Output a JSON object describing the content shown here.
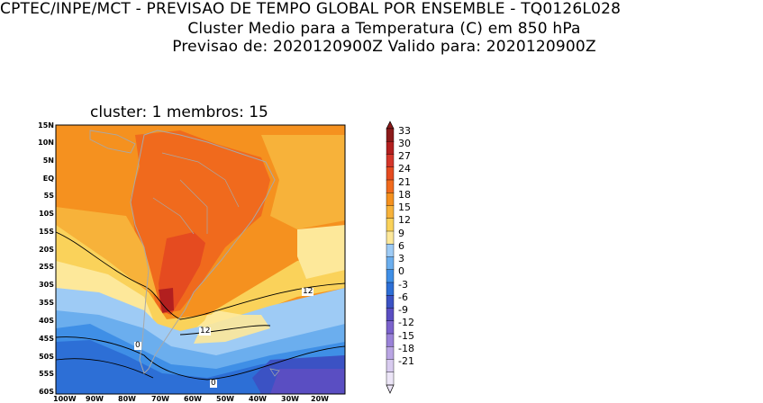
{
  "header": {
    "line1": "CPTEC/INPE/MCT - PREVISAO DE TEMPO GLOBAL POR ENSEMBLE - TQ0126L028",
    "line2": "Cluster Medio para a Temperatura (C) em 850 hPa",
    "line3": "Previsao de: 2020120900Z   Valido para: 2020120900Z"
  },
  "panel": {
    "title": "cluster: 1  membros: 15"
  },
  "axes": {
    "lat_labels": [
      "15N",
      "10N",
      "5N",
      "EQ",
      "5S",
      "10S",
      "15S",
      "20S",
      "25S",
      "30S",
      "35S",
      "40S",
      "45S",
      "50S",
      "55S",
      "60S"
    ],
    "lon_labels": [
      "100W",
      "90W",
      "80W",
      "70W",
      "60W",
      "50W",
      "40W",
      "30W",
      "20W"
    ]
  },
  "contour_labels": [
    "12",
    "12",
    "0",
    "0"
  ],
  "colorbar": {
    "labels": [
      "33",
      "30",
      "27",
      "24",
      "21",
      "18",
      "15",
      "12",
      "9",
      "6",
      "3",
      "0",
      "-3",
      "-6",
      "-9",
      "-12",
      "-15",
      "-18",
      "-21"
    ],
    "colors": [
      "#8b1a1a",
      "#b21f1f",
      "#d4362a",
      "#e54b20",
      "#f06a1d",
      "#f5911f",
      "#f7b23a",
      "#fad25a",
      "#fde89a",
      "#9ecbf5",
      "#6baeee",
      "#3f8fe6",
      "#2d6fd6",
      "#3b52c4",
      "#5a4ec2",
      "#7b62cc",
      "#9a82d8",
      "#b9a5e3",
      "#d8cbef",
      "#ece5f7"
    ]
  }
}
